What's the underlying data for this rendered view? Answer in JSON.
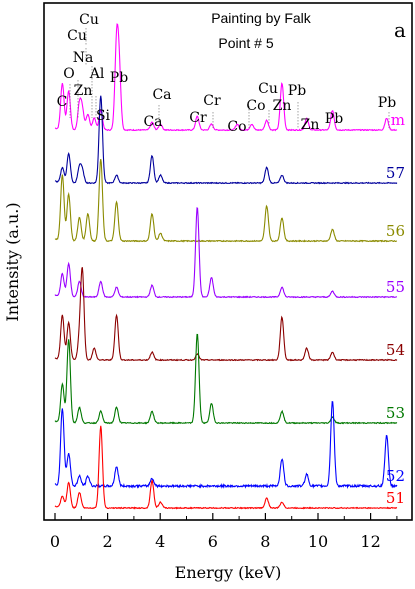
{
  "chart_data": {
    "type": "line",
    "title": "",
    "subtitle_lines": [
      "Painting by Falk",
      "Point # 5"
    ],
    "panel_label": "a",
    "xlabel": "Energy (keV)",
    "ylabel": "Intensity (a.u.)",
    "xlim": [
      -0.4,
      13.4
    ],
    "xticks": [
      0,
      2,
      4,
      6,
      8,
      10,
      12
    ],
    "grid": false,
    "series": [
      {
        "name": "m",
        "color": "#ff00ff",
        "baseline": 0,
        "peaks": [
          [
            0.28,
            24
          ],
          [
            0.52,
            20
          ],
          [
            0.93,
            13
          ],
          [
            1.04,
            10
          ],
          [
            1.25,
            8
          ],
          [
            1.49,
            6
          ],
          [
            1.74,
            10
          ],
          [
            2.34,
            42
          ],
          [
            2.44,
            30
          ],
          [
            3.69,
            4
          ],
          [
            4.01,
            3
          ],
          [
            5.41,
            7
          ],
          [
            5.95,
            3
          ],
          [
            6.93,
            3
          ],
          [
            7.48,
            3
          ],
          [
            8.05,
            5
          ],
          [
            8.63,
            24
          ],
          [
            9.57,
            6
          ],
          [
            10.55,
            10
          ],
          [
            12.61,
            6
          ]
        ]
      },
      {
        "name": "57",
        "color": "#00009c",
        "baseline": 1,
        "peaks": [
          [
            0.28,
            8
          ],
          [
            0.52,
            15
          ],
          [
            0.93,
            8
          ],
          [
            1.04,
            6
          ],
          [
            1.74,
            45
          ],
          [
            2.34,
            4
          ],
          [
            3.69,
            14
          ],
          [
            4.01,
            4
          ],
          [
            8.05,
            8
          ],
          [
            8.63,
            4
          ]
        ]
      },
      {
        "name": "56",
        "color": "#8b8b00",
        "baseline": 2,
        "peaks": [
          [
            0.28,
            34
          ],
          [
            0.52,
            24
          ],
          [
            0.93,
            12
          ],
          [
            1.25,
            14
          ],
          [
            1.74,
            42
          ],
          [
            2.34,
            20
          ],
          [
            3.69,
            14
          ],
          [
            4.01,
            4
          ],
          [
            8.05,
            18
          ],
          [
            8.63,
            12
          ],
          [
            10.55,
            6
          ]
        ]
      },
      {
        "name": "55",
        "color": "#9a00ff",
        "baseline": 3,
        "peaks": [
          [
            0.28,
            12
          ],
          [
            0.52,
            17
          ],
          [
            0.93,
            8
          ],
          [
            1.74,
            8
          ],
          [
            2.34,
            5
          ],
          [
            3.69,
            6
          ],
          [
            5.41,
            46
          ],
          [
            5.95,
            10
          ],
          [
            8.63,
            5
          ],
          [
            10.55,
            3
          ]
        ]
      },
      {
        "name": "54",
        "color": "#8b0000",
        "baseline": 4,
        "peaks": [
          [
            0.28,
            23
          ],
          [
            0.52,
            19
          ],
          [
            0.93,
            10
          ],
          [
            1.04,
            45
          ],
          [
            1.49,
            6
          ],
          [
            2.34,
            23
          ],
          [
            3.69,
            4
          ],
          [
            5.41,
            3
          ],
          [
            8.63,
            22
          ],
          [
            9.57,
            6
          ],
          [
            10.55,
            4
          ]
        ]
      },
      {
        "name": "53",
        "color": "#007800",
        "baseline": 5,
        "peaks": [
          [
            0.28,
            20
          ],
          [
            0.52,
            43
          ],
          [
            0.93,
            8
          ],
          [
            1.74,
            6
          ],
          [
            2.34,
            8
          ],
          [
            3.69,
            6
          ],
          [
            5.41,
            46
          ],
          [
            5.95,
            10
          ],
          [
            8.63,
            6
          ],
          [
            10.55,
            3
          ]
        ]
      },
      {
        "name": "52",
        "color": "#0000ff",
        "baseline": 6,
        "peaks": [
          [
            0.28,
            40
          ],
          [
            0.52,
            17
          ],
          [
            0.93,
            5
          ],
          [
            1.25,
            5
          ],
          [
            2.34,
            10
          ],
          [
            3.69,
            4
          ],
          [
            8.63,
            14
          ],
          [
            9.57,
            6
          ],
          [
            10.55,
            44
          ],
          [
            12.61,
            26
          ]
        ]
      },
      {
        "name": "51",
        "color": "#ff0000",
        "baseline": 7,
        "peaks": [
          [
            0.28,
            6
          ],
          [
            0.52,
            13
          ],
          [
            0.93,
            8
          ],
          [
            1.74,
            42
          ],
          [
            3.69,
            14
          ],
          [
            4.01,
            3
          ],
          [
            8.05,
            5
          ],
          [
            8.63,
            3
          ]
        ]
      }
    ],
    "element_labels": [
      {
        "text": "Cu"
      },
      {
        "text": "Cu"
      },
      {
        "text": "Na"
      },
      {
        "text": "O"
      },
      {
        "text": "Al"
      },
      {
        "text": "Zn"
      },
      {
        "text": "C"
      },
      {
        "text": "Pb"
      },
      {
        "text": "Si"
      },
      {
        "text": "Ca"
      },
      {
        "text": "Ca"
      },
      {
        "text": "Cr"
      },
      {
        "text": "Cr"
      },
      {
        "text": "Cu"
      },
      {
        "text": "Co"
      },
      {
        "text": "Co"
      },
      {
        "text": "Zn"
      },
      {
        "text": "Pb"
      },
      {
        "text": "Zn"
      },
      {
        "text": "Pb"
      },
      {
        "text": "Pb"
      }
    ]
  }
}
